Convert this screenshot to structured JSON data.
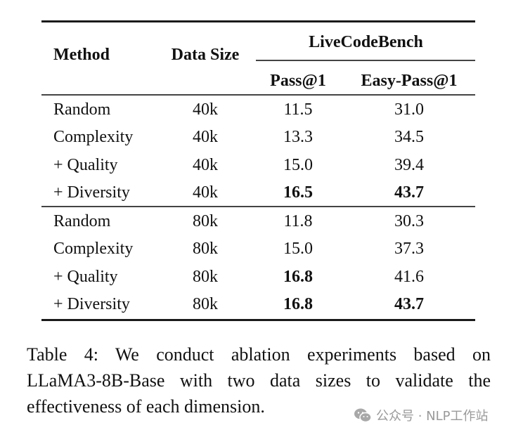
{
  "table": {
    "headers": {
      "method": "Method",
      "data_size": "Data Size",
      "group": "LiveCodeBench",
      "pass1": "Pass@1",
      "easy_pass1": "Easy-Pass@1"
    },
    "groups": [
      {
        "rows": [
          {
            "method": "Random",
            "data_size": "40k",
            "pass1": "11.5",
            "easy_pass1": "31.0",
            "pass1_bold": false,
            "easy_bold": false
          },
          {
            "method": "Complexity",
            "data_size": "40k",
            "pass1": "13.3",
            "easy_pass1": "34.5",
            "pass1_bold": false,
            "easy_bold": false
          },
          {
            "method": "+ Quality",
            "data_size": "40k",
            "pass1": "15.0",
            "easy_pass1": "39.4",
            "pass1_bold": false,
            "easy_bold": false
          },
          {
            "method": "+ Diversity",
            "data_size": "40k",
            "pass1": "16.5",
            "easy_pass1": "43.7",
            "pass1_bold": true,
            "easy_bold": true
          }
        ]
      },
      {
        "rows": [
          {
            "method": "Random",
            "data_size": "80k",
            "pass1": "11.8",
            "easy_pass1": "30.3",
            "pass1_bold": false,
            "easy_bold": false
          },
          {
            "method": "Complexity",
            "data_size": "80k",
            "pass1": "15.0",
            "easy_pass1": "37.3",
            "pass1_bold": false,
            "easy_bold": false
          },
          {
            "method": "+ Quality",
            "data_size": "80k",
            "pass1": "16.8",
            "easy_pass1": "41.6",
            "pass1_bold": true,
            "easy_bold": false
          },
          {
            "method": "+ Diversity",
            "data_size": "80k",
            "pass1": "16.8",
            "easy_pass1": "43.7",
            "pass1_bold": true,
            "easy_bold": true
          }
        ]
      }
    ]
  },
  "caption": {
    "lines": [
      "Table 4:  We conduct ablation experiments based on",
      "LLaMA3-8B-Base with two data sizes to validate the",
      "effectiveness of each dimension."
    ]
  },
  "watermark": {
    "icon": "wechat-icon",
    "text": "公众号 · NLP工作站"
  }
}
